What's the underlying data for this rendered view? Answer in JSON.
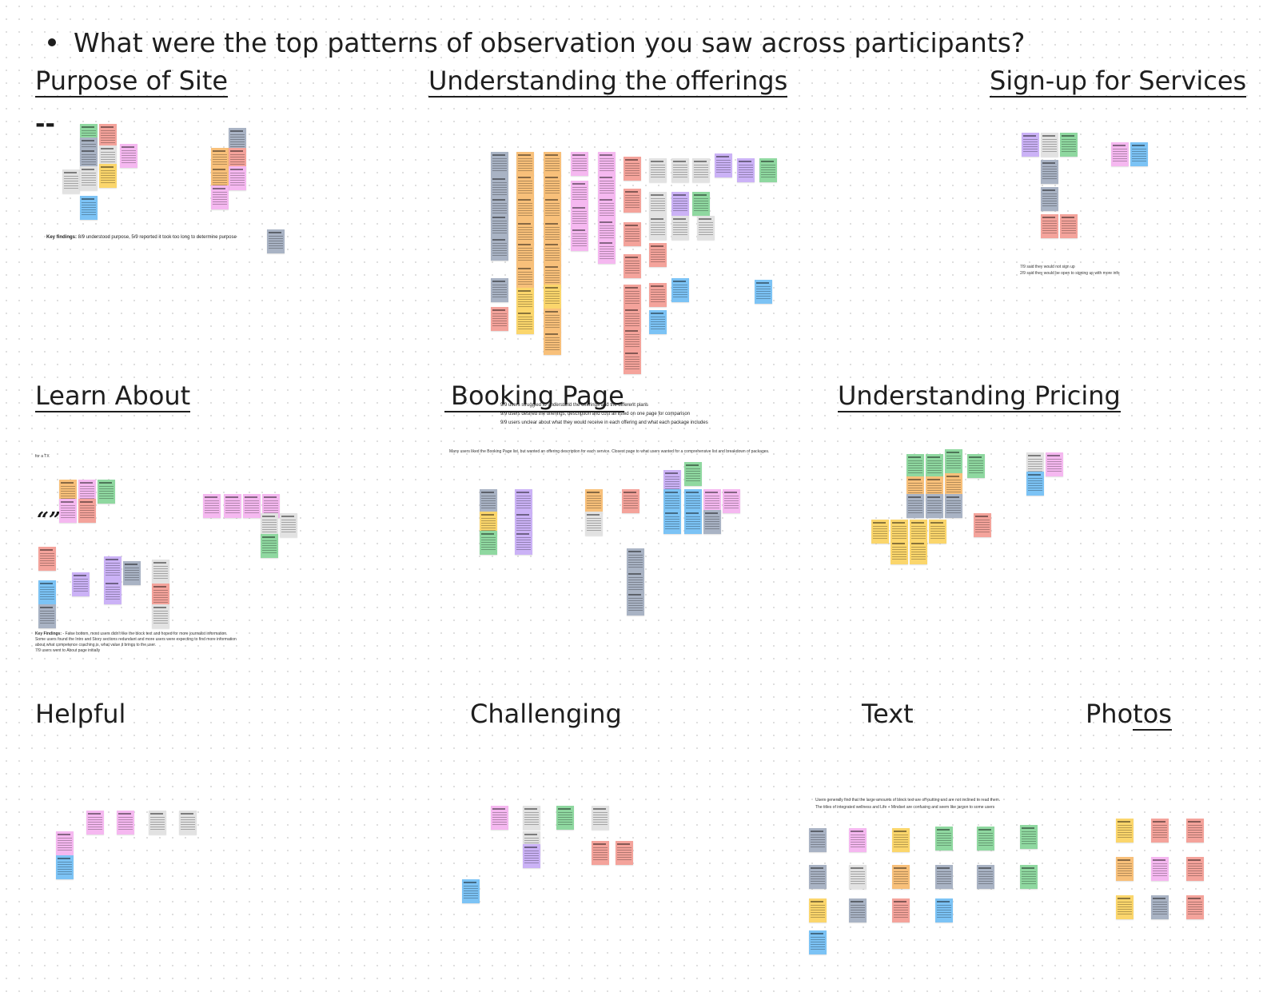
{
  "question": "What were the top patterns of observation you saw across participants?",
  "colors": {
    "green": "#8fd8a0",
    "pink": "#f5b8f0",
    "gray": "#a9b3c4",
    "salmon": "#f4a39b",
    "orange": "#f8c07a",
    "yellow": "#fbd66c",
    "purple": "#cbb2f6",
    "blue": "#7cc3f5",
    "light": "#e2e2e2"
  },
  "sections": {
    "purpose": {
      "title": "Purpose of Site",
      "dash": "--",
      "findings_bold": "Key findings:",
      "findings_text": " 8/9 understood purpose, 5/9 reported it took too long to determine purpose"
    },
    "offerings": {
      "title": "Understanding the offerings",
      "notes": [
        "9/9 users struggled to understand the offerings and the different plans",
        "9/9 users desired the offerings, description and cost all listed on one page for comparison",
        "9/9 users unclear about what they would receive in each offering and what each package includes"
      ]
    },
    "signup": {
      "title": "Sign-up for Services",
      "notes": [
        "7/9 said they would not sign up",
        "2/9 said they would be open to signing up with more info"
      ]
    },
    "learn": {
      "title": "Learn About",
      "small_label": "for a TX",
      "quote": "“”",
      "findings_bold": "Key Findings:",
      "findings_lines": [
        " - False bottom, most users didn't like the block text and hoped for more journalist information.",
        "Some users found the Intro and Story sections redundant and more users were expecting to find more information",
        "about what competence coaching is, what value it brings to the user.",
        "7/9 users went to About page initially"
      ]
    },
    "booking": {
      "title": "Booking Page",
      "note": "Many users liked the Booking Page list, but wanted an offering description for each service. Closest page to what users wanted for a comprehensive list and breakdown of packages."
    },
    "pricing": {
      "title": "Understanding Pricing"
    },
    "helpful": {
      "title": "Helpful"
    },
    "challenging": {
      "title": "Challenging"
    },
    "text": {
      "title": "Text",
      "notes": [
        "Users generally find that the large amounts of block text are off putting and are not inclined to read them.",
        "The titles of integrated wellness and Life + Mindset are confusing and seem like jargon to some users"
      ]
    },
    "photos": {
      "title_a": "Pho",
      "title_b": "tos"
    }
  }
}
